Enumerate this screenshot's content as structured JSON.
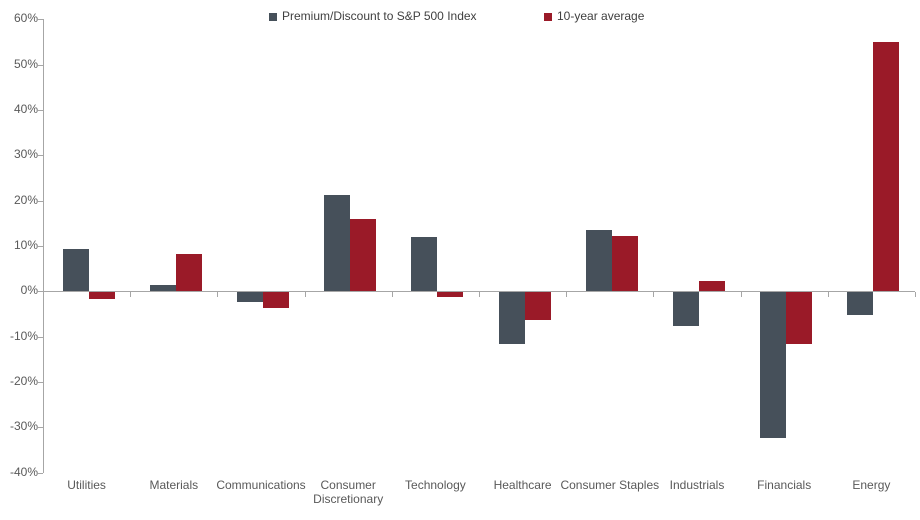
{
  "chart_data": {
    "type": "bar",
    "title": "",
    "categories": [
      "Utilities",
      "Materials",
      "Communications",
      "Consumer Discretionary",
      "Technology",
      "Healthcare",
      "Consumer Staples",
      "Industrials",
      "Financials",
      "Energy"
    ],
    "series": [
      {
        "name": "Premium/Discount to S&P 500 Index",
        "color": "#46505a",
        "values": [
          9.4,
          1.5,
          -2.2,
          21.2,
          12.0,
          -11.4,
          13.5,
          -7.4,
          -32.2,
          -5.1
        ]
      },
      {
        "name": "10-year average",
        "color": "#9a1a28",
        "values": [
          -1.5,
          8.2,
          -3.4,
          15.9,
          -1.0,
          -6.1,
          12.1,
          2.3,
          -11.4,
          55.0
        ]
      }
    ],
    "unit": "%",
    "ylim": [
      -40,
      60
    ],
    "ytick_step": 10,
    "ytick_labels": [
      "60%",
      "50%",
      "40%",
      "30%",
      "20%",
      "10%",
      "0%",
      "-10%",
      "-20%",
      "-30%",
      "-40%"
    ],
    "grid": false,
    "legend_position": "top-center",
    "axis_color": "#a6a6a6",
    "tick_label_color": "#595959",
    "legend_text_color": "#3f3f3f",
    "background": "#ffffff"
  }
}
